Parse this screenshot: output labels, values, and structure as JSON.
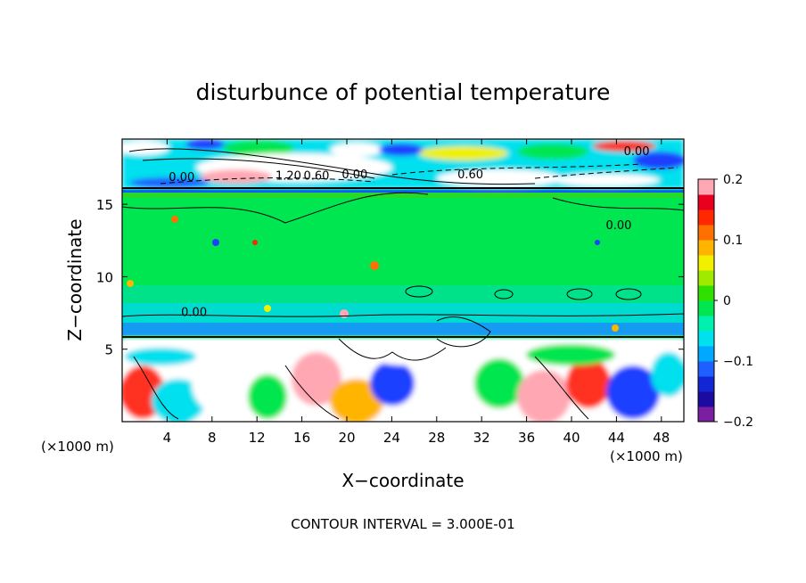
{
  "chart_data": {
    "type": "heatmap",
    "title": "disturbunce of potential temperature",
    "xlabel": "X−coordinate",
    "ylabel": "Z−coordinate",
    "x_unit_left": "(×1000 m)",
    "x_unit_right": "(×1000 m)",
    "xlim": [
      0,
      50
    ],
    "ylim": [
      0,
      19.5
    ],
    "x_ticks": [
      4,
      8,
      12,
      16,
      20,
      24,
      28,
      32,
      36,
      40,
      44,
      48
    ],
    "x_tick_labels": [
      "4",
      "8",
      "12",
      "16",
      "20",
      "24",
      "28",
      "32",
      "36",
      "40",
      "44",
      "48"
    ],
    "y_ticks": [
      5,
      10,
      15
    ],
    "y_tick_labels": [
      "5",
      "10",
      "15"
    ],
    "colorbar": {
      "range": [
        -0.2,
        0.2
      ],
      "ticks": [
        0.2,
        0.1,
        0,
        -0.1,
        -0.2
      ],
      "tick_labels": [
        "0.2",
        "0.1",
        "0",
        "−0.1",
        "−0.2"
      ],
      "colors": [
        "#7a1fa0",
        "#1d0aa0",
        "#1226d6",
        "#1e60ff",
        "#00a8ff",
        "#00e0ee",
        "#00f0b0",
        "#00e650",
        "#30e000",
        "#a0ea00",
        "#f0f000",
        "#ffb400",
        "#ff7000",
        "#ff2800",
        "#e8001e",
        "#ffa8b4"
      ]
    },
    "contour_labels": [
      {
        "text": "0.00",
        "x": 45.8,
        "z": 18.4
      },
      {
        "text": "0.00",
        "x": 5.3,
        "z": 16.6
      },
      {
        "text": "1.20",
        "x": 14.8,
        "z": 16.7
      },
      {
        "text": "0.60",
        "x": 17.3,
        "z": 16.7
      },
      {
        "text": "0.00",
        "x": 20.7,
        "z": 16.8
      },
      {
        "text": "0.60",
        "x": 31.0,
        "z": 16.8
      },
      {
        "text": "0.00",
        "x": 44.2,
        "z": 13.3
      },
      {
        "text": "0.00",
        "x": 6.4,
        "z": 7.3
      }
    ],
    "annotation": "CONTOUR INTERVAL = 3.000E-01"
  }
}
